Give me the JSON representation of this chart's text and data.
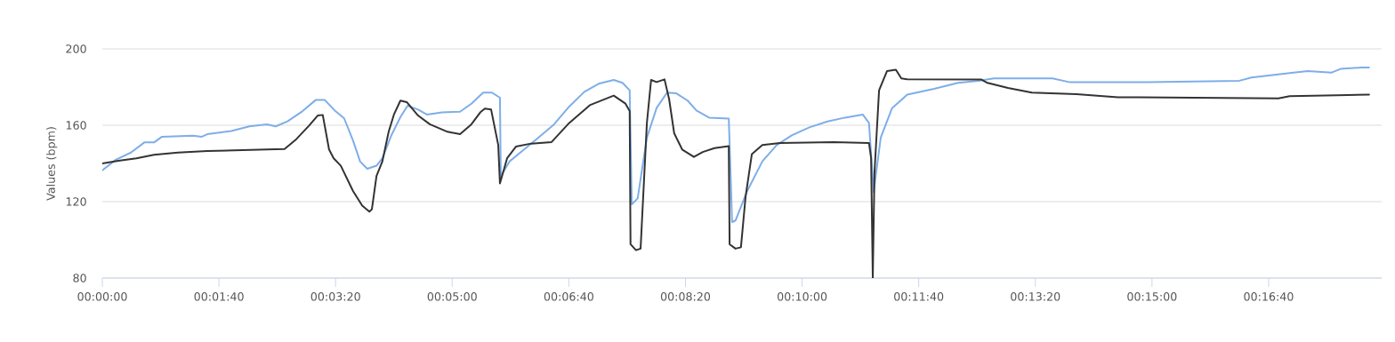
{
  "chart_data": {
    "type": "line",
    "ylabel": "Values (bpm)",
    "xlim": [
      0,
      0.3047
    ],
    "ylim": [
      80,
      200
    ],
    "yticks": [
      80,
      120,
      160,
      200
    ],
    "xticks": [
      {
        "value": 0,
        "label": "00:00:00"
      },
      {
        "value": 0.02778,
        "label": "00:01:40"
      },
      {
        "value": 0.05556,
        "label": "00:03:20"
      },
      {
        "value": 0.08333,
        "label": "00:05:00"
      },
      {
        "value": 0.11111,
        "label": "00:06:40"
      },
      {
        "value": 0.13889,
        "label": "00:08:20"
      },
      {
        "value": 0.16667,
        "label": "00:10:00"
      },
      {
        "value": 0.19444,
        "label": "00:11:40"
      },
      {
        "value": 0.22222,
        "label": "00:13:20"
      },
      {
        "value": 0.25,
        "label": "00:15:00"
      },
      {
        "value": 0.27778,
        "label": "00:16:40"
      }
    ],
    "grid": "y",
    "marker": "none",
    "line_style": "solid",
    "series": [
      {
        "color": "#7eaee8",
        "x": [
          0,
          0.0032,
          0.0068,
          0.01,
          0.0123,
          0.0142,
          0.0216,
          0.0237,
          0.025,
          0.0307,
          0.035,
          0.0392,
          0.0413,
          0.0441,
          0.0477,
          0.0508,
          0.053,
          0.0555,
          0.0576,
          0.0597,
          0.0614,
          0.0631,
          0.0653,
          0.0667,
          0.0689,
          0.071,
          0.0727,
          0.0752,
          0.0773,
          0.0809,
          0.0852,
          0.0879,
          0.0907,
          0.0928,
          0.0947,
          0.0949,
          0.097,
          0.1,
          0.1034,
          0.1076,
          0.1112,
          0.1148,
          0.1182,
          0.1218,
          0.1239,
          0.1256,
          0.1261,
          0.1275,
          0.1297,
          0.132,
          0.1345,
          0.1367,
          0.1394,
          0.1415,
          0.1445,
          0.1492,
          0.15,
          0.1508,
          0.1536,
          0.1572,
          0.1606,
          0.1642,
          0.1684,
          0.1727,
          0.1769,
          0.1811,
          0.1826,
          0.1837,
          0.1854,
          0.1881,
          0.1917,
          0.1932,
          0.1981,
          0.2038,
          0.2087,
          0.2123,
          0.2263,
          0.2305,
          0.2462,
          0.2489,
          0.2708,
          0.2737,
          0.2828,
          0.2871,
          0.2928,
          0.2949,
          0.2998,
          0.3017
        ],
        "values": [
          136.4,
          141.9,
          145.7,
          151,
          151,
          154,
          154.5,
          154,
          155.3,
          157,
          159.4,
          160.5,
          159.4,
          162,
          167.4,
          173.2,
          173.2,
          167.4,
          163.6,
          152,
          141,
          137.2,
          138.8,
          142.7,
          155,
          164.3,
          170.2,
          168.2,
          165.6,
          166.7,
          167.1,
          171.3,
          177.1,
          177.1,
          174.4,
          133.3,
          141.1,
          146.5,
          152.7,
          160.5,
          169.8,
          177.5,
          181.7,
          183.7,
          182.2,
          178.3,
          118.6,
          121.7,
          153.5,
          169,
          177.1,
          176.7,
          172.9,
          167.7,
          164,
          163.5,
          109.3,
          110.1,
          125.6,
          141.1,
          149.6,
          154.7,
          158.9,
          162,
          164,
          165.6,
          161.2,
          125,
          153.5,
          169,
          176,
          176.7,
          179.1,
          182.2,
          183.3,
          184.5,
          184.5,
          182.5,
          182.5,
          182.6,
          183.3,
          185,
          187.3,
          188.4,
          187.6,
          189.5,
          190.2,
          190.2
        ]
      },
      {
        "color": "#333333",
        "x": [
          0,
          0.0038,
          0.0081,
          0.0123,
          0.018,
          0.025,
          0.0392,
          0.0434,
          0.0462,
          0.0492,
          0.0513,
          0.0525,
          0.054,
          0.0551,
          0.0568,
          0.0597,
          0.0619,
          0.0636,
          0.0642,
          0.0653,
          0.0667,
          0.0682,
          0.0695,
          0.071,
          0.0725,
          0.0752,
          0.078,
          0.0822,
          0.0852,
          0.0879,
          0.09,
          0.0911,
          0.0926,
          0.0943,
          0.0947,
          0.0964,
          0.0985,
          0.1021,
          0.107,
          0.1112,
          0.1161,
          0.1218,
          0.1246,
          0.1256,
          0.1258,
          0.1271,
          0.1282,
          0.1297,
          0.1307,
          0.132,
          0.1339,
          0.135,
          0.1362,
          0.1381,
          0.1409,
          0.143,
          0.1458,
          0.1492,
          0.1494,
          0.1508,
          0.1521,
          0.1532,
          0.1547,
          0.1572,
          0.1614,
          0.1742,
          0.1826,
          0.1831,
          0.1835,
          0.1839,
          0.185,
          0.1869,
          0.189,
          0.1903,
          0.1917,
          0.2093,
          0.2108,
          0.2157,
          0.2214,
          0.232,
          0.2419,
          0.2468,
          0.2801,
          0.2828,
          0.2941,
          0.3017
        ],
        "values": [
          140,
          141.4,
          142.7,
          144.5,
          145.7,
          146.5,
          147.3,
          147.6,
          152.7,
          159.7,
          165.1,
          165.4,
          147.3,
          142.7,
          138.8,
          125.6,
          117.9,
          114.8,
          116,
          133.4,
          141.1,
          156.6,
          165.9,
          172.9,
          172.1,
          165.1,
          160.5,
          156.6,
          155.3,
          160.5,
          166.7,
          168.7,
          168.2,
          149.6,
          129.5,
          142.7,
          148.8,
          150.4,
          151.2,
          161.2,
          170.5,
          175.5,
          171.3,
          167.4,
          97.7,
          94.6,
          95.4,
          161.2,
          183.7,
          182.6,
          184,
          173.6,
          155.8,
          147.3,
          143.4,
          146,
          148,
          149.1,
          97.7,
          95.4,
          96.1,
          122.5,
          144.9,
          149.6,
          150.7,
          151.2,
          150.7,
          142.7,
          80,
          134.9,
          178.3,
          188.4,
          189.1,
          184.5,
          184.1,
          184,
          182.2,
          179.5,
          177.1,
          176.3,
          174.7,
          174.7,
          174.1,
          175.2,
          175.7,
          176
        ]
      }
    ]
  }
}
